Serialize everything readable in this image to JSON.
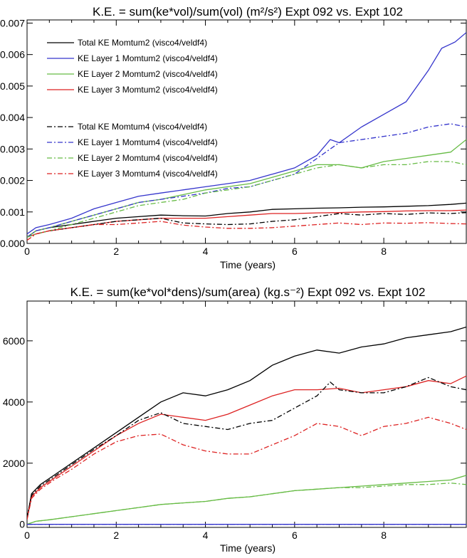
{
  "chart_data": [
    {
      "type": "line",
      "title": "K.E. = sum(ke*vol)/sum(vol) (m²/s²) Expt 092 vs. Expt 102",
      "xlabel": "Time (years)",
      "ylabel": "",
      "xlim": [
        0,
        9.85
      ],
      "ylim": [
        0,
        0.0071
      ],
      "x_ticks": [
        0,
        2,
        4,
        6,
        8
      ],
      "x_tick_labels": [
        "0",
        "2",
        "4",
        "6",
        "8"
      ],
      "y_ticks": [
        0,
        0.001,
        0.002,
        0.003,
        0.004,
        0.005,
        0.006,
        0.007
      ],
      "y_tick_labels": [
        "0.000",
        "0.001",
        "0.002",
        "0.003",
        "0.004",
        "0.005",
        "0.006",
        "0.007"
      ],
      "legend_placement": "top-left",
      "grid": false,
      "series": [
        {
          "name": "Total KE Momtum2 (visco4/veldf4)",
          "color": "#000000",
          "dash": "solid",
          "x": [
            0,
            0.2,
            0.5,
            1,
            1.5,
            2,
            2.5,
            3,
            3.5,
            4,
            4.5,
            5,
            5.5,
            6,
            6.5,
            7,
            7.5,
            8,
            8.5,
            9,
            9.5,
            9.85
          ],
          "y": [
            0.0002,
            0.0004,
            0.0005,
            0.0006,
            0.0007,
            0.0008,
            0.00085,
            0.0009,
            0.00088,
            0.00087,
            0.00095,
            0.001,
            0.00108,
            0.0011,
            0.00112,
            0.00113,
            0.00115,
            0.00116,
            0.00118,
            0.0012,
            0.00124,
            0.00128
          ]
        },
        {
          "name": "KE Layer 1 Momtum2 (visco4/veldf4)",
          "color": "#3535cc",
          "dash": "solid",
          "x": [
            0,
            0.2,
            0.5,
            1,
            1.5,
            2,
            2.5,
            3,
            3.5,
            4,
            4.5,
            5,
            5.5,
            6,
            6.5,
            6.8,
            7,
            7.5,
            8,
            8.5,
            9,
            9.3,
            9.6,
            9.85
          ],
          "y": [
            0.0003,
            0.0005,
            0.0006,
            0.0008,
            0.0011,
            0.0013,
            0.0015,
            0.0016,
            0.0017,
            0.0018,
            0.0019,
            0.002,
            0.0022,
            0.0024,
            0.0028,
            0.0033,
            0.0032,
            0.0037,
            0.0041,
            0.0045,
            0.0055,
            0.0062,
            0.0064,
            0.0067
          ]
        },
        {
          "name": "KE Layer 2 Momtum2 (visco4/veldf4)",
          "color": "#66bb44",
          "dash": "solid",
          "x": [
            0,
            0.2,
            0.5,
            1,
            1.5,
            2,
            2.5,
            3,
            3.5,
            4,
            4.5,
            5,
            5.5,
            6,
            6.5,
            7,
            7.5,
            8,
            8.5,
            9,
            9.5,
            9.85
          ],
          "y": [
            0.0002,
            0.0004,
            0.0005,
            0.0007,
            0.0009,
            0.0011,
            0.0013,
            0.0014,
            0.00155,
            0.0017,
            0.0018,
            0.0019,
            0.0021,
            0.0023,
            0.0025,
            0.0025,
            0.0024,
            0.0026,
            0.0027,
            0.0028,
            0.0029,
            0.0033
          ]
        },
        {
          "name": "KE Layer 3 Momtum2 (visco4/veldf4)",
          "color": "#dd2222",
          "dash": "solid",
          "x": [
            0,
            0.2,
            0.5,
            1,
            1.5,
            2,
            2.5,
            3,
            3.5,
            4,
            4.5,
            5,
            5.5,
            6,
            6.5,
            7,
            7.5,
            8,
            8.5,
            9,
            9.5,
            9.85
          ],
          "y": [
            0.0002,
            0.0003,
            0.0004,
            0.0005,
            0.0006,
            0.0007,
            0.00075,
            0.0008,
            0.0008,
            0.0008,
            0.00085,
            0.0009,
            0.00095,
            0.00095,
            0.00097,
            0.00098,
            0.001,
            0.00101,
            0.00103,
            0.00104,
            0.00104,
            0.00106
          ]
        },
        {
          "name": "Total KE Momtum4 (visco4/veldf4)",
          "color": "#000000",
          "dash": "dashdot",
          "x": [
            0,
            0.2,
            0.5,
            1,
            1.5,
            2,
            2.5,
            3,
            3.5,
            4,
            4.5,
            5,
            5.5,
            6,
            6.5,
            7,
            7.5,
            8,
            8.5,
            9,
            9.5,
            9.85
          ],
          "y": [
            0.0002,
            0.0003,
            0.0004,
            0.0005,
            0.0006,
            0.0007,
            0.00075,
            0.0008,
            0.00065,
            0.00062,
            0.0006,
            0.00062,
            0.0007,
            0.00075,
            0.00085,
            0.00095,
            0.0009,
            0.00095,
            0.00092,
            0.00097,
            0.00095,
            0.00098
          ]
        },
        {
          "name": "KE Layer 1 Momtum4 (visco4/veldf4)",
          "color": "#3535cc",
          "dash": "dashdot",
          "x": [
            0,
            0.2,
            0.5,
            1,
            1.5,
            2,
            2.5,
            3,
            3.5,
            4,
            4.5,
            5,
            5.5,
            6,
            6.5,
            6.8,
            7,
            7.5,
            8,
            8.5,
            9,
            9.5,
            9.85
          ],
          "y": [
            0.0002,
            0.0004,
            0.0005,
            0.0007,
            0.0009,
            0.0011,
            0.0013,
            0.0014,
            0.0015,
            0.0016,
            0.00175,
            0.0018,
            0.002,
            0.0022,
            0.0027,
            0.003,
            0.0032,
            0.0033,
            0.0034,
            0.0035,
            0.0037,
            0.0038,
            0.0037
          ]
        },
        {
          "name": "KE Layer 2 Momtum4 (visco4/veldf4)",
          "color": "#66bb44",
          "dash": "dashdot",
          "x": [
            0,
            0.2,
            0.5,
            1,
            1.5,
            2,
            2.5,
            3,
            3.5,
            4,
            4.5,
            5,
            5.5,
            6,
            6.5,
            7,
            7.5,
            8,
            8.5,
            9,
            9.5,
            9.85
          ],
          "y": [
            0.0002,
            0.0003,
            0.0004,
            0.0006,
            0.0008,
            0.001,
            0.0012,
            0.0013,
            0.0014,
            0.0016,
            0.0017,
            0.0018,
            0.002,
            0.0022,
            0.0024,
            0.0025,
            0.0024,
            0.0025,
            0.0025,
            0.0026,
            0.0026,
            0.0025
          ]
        },
        {
          "name": "KE Layer 3 Momtum4 (visco4/veldf4)",
          "color": "#dd2222",
          "dash": "dashdot",
          "x": [
            0,
            0.2,
            0.5,
            1,
            1.5,
            2,
            2.5,
            3,
            3.5,
            4,
            4.5,
            5,
            5.5,
            6,
            6.5,
            7,
            7.5,
            8,
            8.5,
            9,
            9.5,
            9.85
          ],
          "y": [
            0.0001,
            0.0003,
            0.0004,
            0.0005,
            0.0006,
            0.0006,
            0.00065,
            0.0007,
            0.00058,
            0.00052,
            0.00048,
            0.00048,
            0.0005,
            0.00055,
            0.0006,
            0.00065,
            0.0006,
            0.00065,
            0.00064,
            0.00066,
            0.00063,
            0.00062
          ]
        }
      ]
    },
    {
      "type": "line",
      "title": "K.E. = sum(ke*vol*dens)/sum(area) (kg.s⁻²) Expt 092 vs. Expt 102",
      "xlabel": "Time (years)",
      "ylabel": "",
      "xlim": [
        0,
        9.85
      ],
      "ylim": [
        -100,
        7300
      ],
      "x_ticks": [
        0,
        2,
        4,
        6,
        8
      ],
      "x_tick_labels": [
        "0",
        "2",
        "4",
        "6",
        "8"
      ],
      "y_ticks": [
        0,
        2000,
        4000,
        6000
      ],
      "y_tick_labels": [
        "0",
        "2000",
        "4000",
        "6000"
      ],
      "grid": false,
      "series": [
        {
          "color": "#000000",
          "dash": "solid",
          "x": [
            0,
            0.1,
            0.3,
            0.6,
            1,
            1.5,
            2,
            2.5,
            3,
            3.5,
            4,
            4.5,
            5,
            5.5,
            6,
            6.5,
            7,
            7.5,
            8,
            8.5,
            9,
            9.5,
            9.85
          ],
          "y": [
            200,
            1000,
            1300,
            1600,
            2000,
            2500,
            3000,
            3500,
            4000,
            4300,
            4200,
            4400,
            4700,
            5200,
            5500,
            5700,
            5600,
            5800,
            5900,
            6100,
            6200,
            6300,
            6450
          ]
        },
        {
          "color": "#dd2222",
          "dash": "solid",
          "x": [
            0,
            0.1,
            0.3,
            0.6,
            1,
            1.5,
            2,
            2.5,
            3,
            3.5,
            4,
            4.5,
            5,
            5.5,
            6,
            6.5,
            7,
            7.5,
            8,
            8.5,
            9,
            9.5,
            9.85
          ],
          "y": [
            200,
            900,
            1200,
            1500,
            1900,
            2400,
            2900,
            3300,
            3600,
            3500,
            3400,
            3600,
            3900,
            4200,
            4400,
            4400,
            4450,
            4300,
            4400,
            4500,
            4700,
            4600,
            4850
          ]
        },
        {
          "color": "#000000",
          "dash": "dashdot",
          "x": [
            0,
            0.1,
            0.3,
            0.6,
            1,
            1.5,
            2,
            2.5,
            3,
            3.5,
            4,
            4.5,
            5,
            5.5,
            6,
            6.5,
            6.8,
            7,
            7.5,
            8,
            8.5,
            9,
            9.5,
            9.85
          ],
          "y": [
            200,
            950,
            1250,
            1550,
            1950,
            2450,
            2900,
            3400,
            3650,
            3300,
            3200,
            3100,
            3300,
            3400,
            3800,
            4200,
            4650,
            4400,
            4300,
            4300,
            4500,
            4800,
            4500,
            4400
          ]
        },
        {
          "color": "#dd2222",
          "dash": "dashdot",
          "x": [
            0,
            0.1,
            0.3,
            0.6,
            1,
            1.5,
            2,
            2.5,
            3,
            3.5,
            4,
            4.5,
            5,
            5.5,
            6,
            6.5,
            7,
            7.5,
            8,
            8.5,
            9,
            9.5,
            9.85
          ],
          "y": [
            150,
            850,
            1150,
            1450,
            1800,
            2300,
            2700,
            2900,
            2950,
            2600,
            2400,
            2300,
            2300,
            2600,
            2900,
            3300,
            3200,
            2900,
            3200,
            3300,
            3500,
            3300,
            3100
          ]
        },
        {
          "color": "#66bb44",
          "dash": "solid",
          "x": [
            0,
            0.2,
            0.5,
            1,
            1.5,
            2,
            2.5,
            3,
            3.5,
            4,
            4.5,
            5,
            5.5,
            6,
            6.5,
            7,
            7.5,
            8,
            8.5,
            9,
            9.5,
            9.85
          ],
          "y": [
            0,
            100,
            150,
            250,
            350,
            450,
            550,
            650,
            700,
            750,
            850,
            900,
            1000,
            1100,
            1150,
            1200,
            1250,
            1300,
            1350,
            1400,
            1450,
            1600
          ]
        },
        {
          "color": "#66bb44",
          "dash": "dashdot",
          "x": [
            0,
            0.2,
            0.5,
            1,
            1.5,
            2,
            2.5,
            3,
            3.5,
            4,
            4.5,
            5,
            5.5,
            6,
            6.5,
            7,
            7.5,
            8,
            8.5,
            9,
            9.5,
            9.85
          ],
          "y": [
            0,
            100,
            150,
            250,
            350,
            450,
            550,
            650,
            700,
            750,
            850,
            900,
            1000,
            1100,
            1150,
            1200,
            1200,
            1250,
            1300,
            1300,
            1350,
            1300
          ]
        },
        {
          "color": "#3535cc",
          "dash": "solid",
          "x": [
            0,
            9.85
          ],
          "y": [
            0,
            0
          ]
        },
        {
          "color": "#3535cc",
          "dash": "dashdot",
          "x": [
            0,
            9.85
          ],
          "y": [
            0,
            0
          ]
        }
      ]
    }
  ]
}
